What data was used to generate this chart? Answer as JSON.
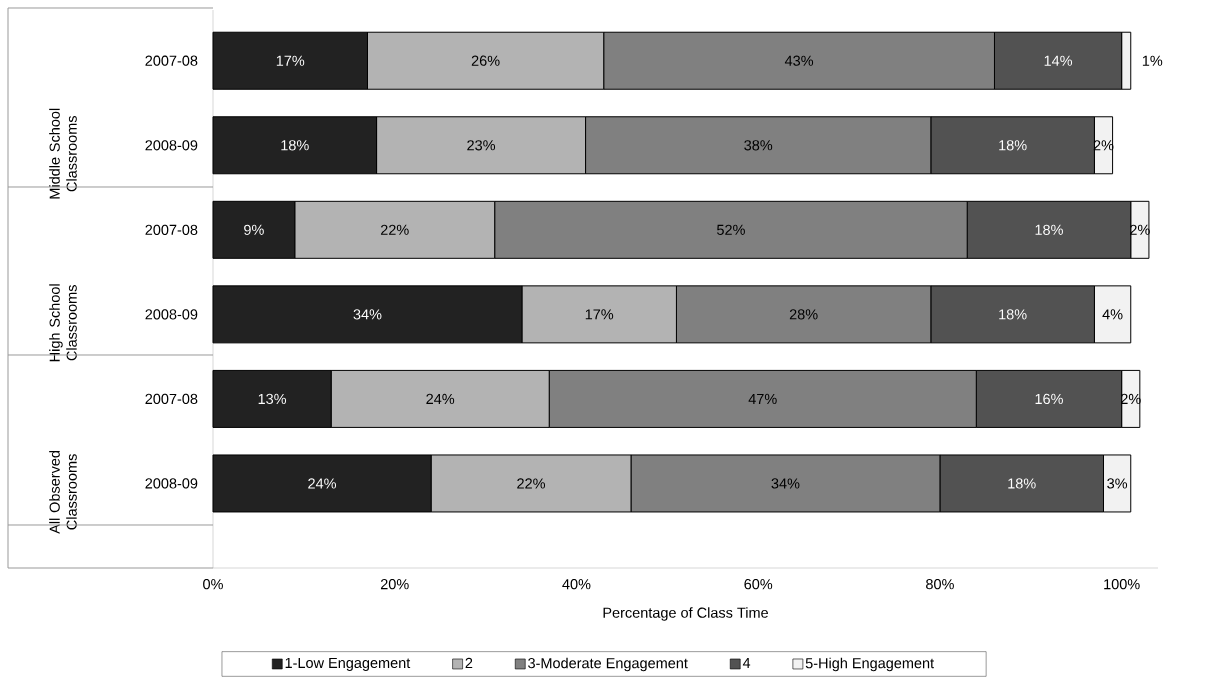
{
  "chart_data": {
    "type": "bar",
    "orientation": "horizontal",
    "stacked": true,
    "categories": [
      "2007-08",
      "2008-09",
      "2007-08",
      "2008-09",
      "2007-08",
      "2008-09"
    ],
    "annotations": [
      "Middle School Classrooms",
      "High School Classrooms",
      "All Observed Classrooms"
    ],
    "xlabel": "Percentage of Class Time",
    "xlim": [
      0,
      104
    ],
    "xticks": [
      {
        "value": 0,
        "label": "0%"
      },
      {
        "value": 20,
        "label": "20%"
      },
      {
        "value": 40,
        "label": "40%"
      },
      {
        "value": 60,
        "label": "60%"
      },
      {
        "value": 80,
        "label": "80%"
      },
      {
        "value": 100,
        "label": "100%"
      }
    ],
    "legend": "bottom",
    "series": [
      {
        "name": "1-Low Engagement",
        "color": "#222222",
        "values": [
          17,
          18,
          9,
          34,
          13,
          24
        ],
        "value_labels": [
          "17%",
          "18%",
          "9%",
          "34%",
          "13%",
          "24%"
        ]
      },
      {
        "name": "2",
        "color": "#b3b3b3",
        "values": [
          26,
          23,
          22,
          17,
          24,
          22
        ],
        "value_labels": [
          "26%",
          "23%",
          "22%",
          "17%",
          "24%",
          "22%"
        ]
      },
      {
        "name": "3-Moderate Engagement",
        "color": "#808080",
        "values": [
          43,
          38,
          52,
          28,
          47,
          34
        ],
        "value_labels": [
          "43%",
          "38%",
          "52%",
          "28%",
          "47%",
          "34%"
        ]
      },
      {
        "name": "4",
        "color": "#525252",
        "values": [
          14,
          18,
          18,
          18,
          16,
          18
        ],
        "value_labels": [
          "14%",
          "18%",
          "18%",
          "18%",
          "16%",
          "18%"
        ]
      },
      {
        "name": "5-High Engagement",
        "color": "#f2f2f2",
        "values": [
          1,
          2,
          2,
          4,
          2,
          3
        ],
        "value_labels": [
          "1%",
          "2%",
          "2%",
          "4%",
          "2%",
          "3%"
        ]
      }
    ]
  }
}
